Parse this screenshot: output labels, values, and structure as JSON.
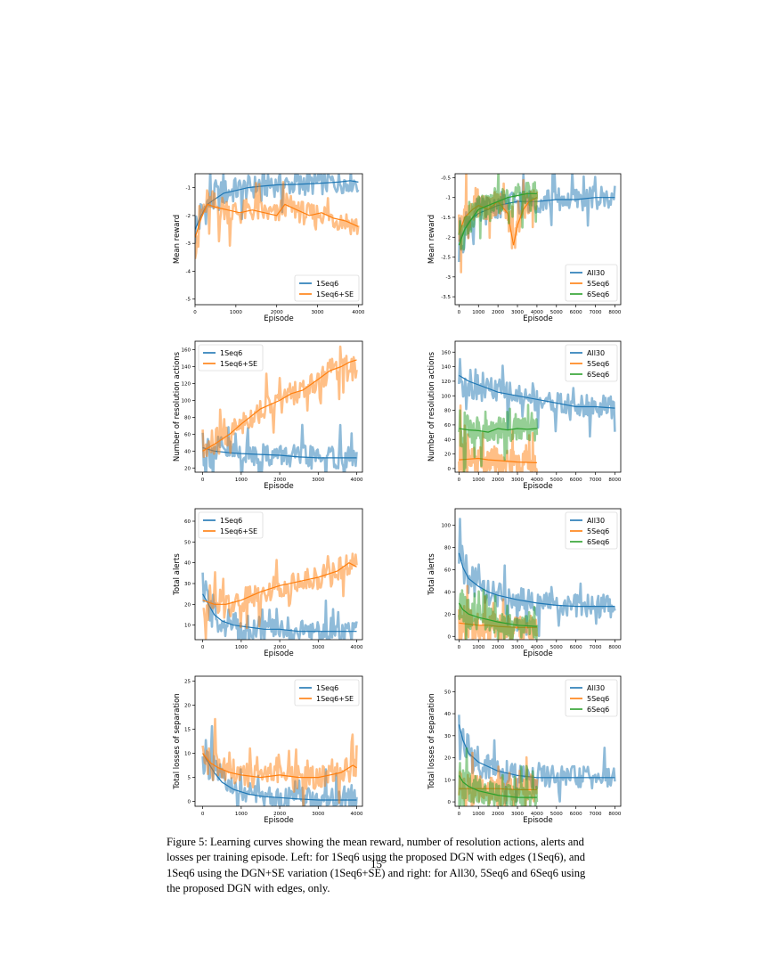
{
  "chart_data": [
    {
      "type": "line",
      "xlabel": "Episode",
      "ylabel": "Mean reward",
      "xlim": [
        0,
        4100
      ],
      "ylim": [
        -5.2,
        -0.5
      ],
      "xticks": [
        0,
        1000,
        2000,
        3000,
        4000
      ],
      "yticks": [
        -5,
        -4,
        -3,
        -2,
        -1
      ],
      "legend_position": "lower-right",
      "series": [
        {
          "name": "1Seq6",
          "color": "#1f77b4",
          "x": [
            0,
            150,
            300,
            500,
            700,
            1000,
            1300,
            1600,
            2000,
            2500,
            3000,
            3500,
            3800,
            4000
          ],
          "y": [
            -2.5,
            -2.0,
            -1.6,
            -1.4,
            -1.2,
            -1.1,
            -1.0,
            -0.95,
            -0.9,
            -0.88,
            -0.85,
            -0.8,
            -0.75,
            -0.8
          ]
        },
        {
          "name": "1Seq6+SE",
          "color": "#ff7f0e",
          "x": [
            0,
            150,
            300,
            500,
            800,
            1100,
            1400,
            1700,
            2000,
            2200,
            2500,
            2800,
            3100,
            3400,
            3700,
            4000
          ],
          "y": [
            -2.8,
            -2.1,
            -1.6,
            -1.7,
            -1.8,
            -1.9,
            -1.8,
            -1.9,
            -2.0,
            -1.6,
            -1.8,
            -2.0,
            -1.9,
            -2.1,
            -2.2,
            -2.4
          ]
        }
      ]
    },
    {
      "type": "line",
      "xlabel": "Episode",
      "ylabel": "Mean reward",
      "xlim": [
        -200,
        8300
      ],
      "ylim": [
        -3.7,
        -0.4
      ],
      "xticks": [
        0,
        1000,
        2000,
        3000,
        4000,
        5000,
        6000,
        7000,
        8000
      ],
      "yticks": [
        -3.5,
        -3.0,
        -2.5,
        -2.0,
        -1.5,
        -1.0,
        -0.5
      ],
      "legend_position": "lower-right",
      "series": [
        {
          "name": "All30",
          "color": "#1f77b4",
          "x": [
            0,
            500,
            1000,
            1500,
            2000,
            3000,
            4000,
            5000,
            6000,
            7000,
            8000
          ],
          "y": [
            -2.1,
            -1.6,
            -1.4,
            -1.3,
            -1.2,
            -1.1,
            -1.1,
            -1.05,
            -1.05,
            -1.0,
            -1.0
          ]
        },
        {
          "name": "5Seq6",
          "color": "#ff7f0e",
          "x": [
            0,
            300,
            700,
            1000,
            1500,
            2000,
            2500,
            2800,
            3000,
            3300,
            3600,
            4000
          ],
          "y": [
            -1.9,
            -1.5,
            -1.3,
            -1.2,
            -1.3,
            -1.1,
            -1.4,
            -2.2,
            -1.7,
            -1.3,
            -1.1,
            -1.0
          ]
        },
        {
          "name": "6Seq6",
          "color": "#2ca02c",
          "x": [
            0,
            300,
            700,
            1000,
            1500,
            2000,
            2500,
            3000,
            3500,
            4000
          ],
          "y": [
            -2.2,
            -1.8,
            -1.5,
            -1.3,
            -1.2,
            -1.1,
            -1.0,
            -0.95,
            -0.9,
            -0.9
          ]
        }
      ]
    },
    {
      "type": "line",
      "xlabel": "Episode",
      "ylabel": "Number of resolution actions",
      "xlim": [
        -200,
        4150
      ],
      "ylim": [
        15,
        170
      ],
      "xticks": [
        0,
        1000,
        2000,
        3000,
        4000
      ],
      "yticks": [
        20,
        40,
        60,
        80,
        100,
        120,
        140,
        160
      ],
      "legend_position": "upper-left",
      "series": [
        {
          "name": "1Seq6",
          "color": "#1f77b4",
          "x": [
            0,
            300,
            700,
            1000,
            1500,
            2000,
            2500,
            3000,
            3500,
            4000
          ],
          "y": [
            44,
            40,
            38,
            37,
            36,
            35,
            33,
            32,
            32,
            32
          ]
        },
        {
          "name": "1Seq6+SE",
          "color": "#ff7f0e",
          "x": [
            0,
            300,
            700,
            1000,
            1500,
            2000,
            2300,
            2600,
            3000,
            3300,
            3600,
            3800,
            4000
          ],
          "y": [
            40,
            48,
            60,
            72,
            90,
            100,
            108,
            112,
            125,
            135,
            140,
            145,
            148
          ]
        }
      ]
    },
    {
      "type": "line",
      "xlabel": "Episode",
      "ylabel": "Number of resolution actions",
      "xlim": [
        -200,
        8300
      ],
      "ylim": [
        -5,
        175
      ],
      "xticks": [
        0,
        1000,
        2000,
        3000,
        4000,
        5000,
        6000,
        7000,
        8000
      ],
      "yticks": [
        0,
        20,
        40,
        60,
        80,
        100,
        120,
        140,
        160
      ],
      "legend_position": "upper-right",
      "series": [
        {
          "name": "All30",
          "color": "#1f77b4",
          "x": [
            0,
            500,
            1000,
            1500,
            2000,
            3000,
            4000,
            5000,
            6000,
            7000,
            8000
          ],
          "y": [
            128,
            120,
            115,
            110,
            105,
            100,
            95,
            90,
            85,
            85,
            83
          ]
        },
        {
          "name": "5Seq6",
          "color": "#ff7f0e",
          "x": [
            0,
            500,
            1000,
            1500,
            2000,
            3000,
            4000
          ],
          "y": [
            12,
            13,
            14,
            12,
            11,
            9,
            8
          ]
        },
        {
          "name": "6Seq6",
          "color": "#2ca02c",
          "x": [
            0,
            500,
            1000,
            1500,
            2000,
            2500,
            3000,
            3500,
            4000
          ],
          "y": [
            55,
            53,
            52,
            50,
            55,
            53,
            55,
            54,
            55
          ]
        }
      ]
    },
    {
      "type": "line",
      "xlabel": "Episode",
      "ylabel": "Total alerts",
      "xlim": [
        -200,
        4150
      ],
      "ylim": [
        3,
        66
      ],
      "xticks": [
        0,
        1000,
        2000,
        3000,
        4000
      ],
      "yticks": [
        10,
        20,
        30,
        40,
        50,
        60
      ],
      "legend_position": "upper-left",
      "series": [
        {
          "name": "1Seq6",
          "color": "#1f77b4",
          "x": [
            0,
            150,
            300,
            500,
            800,
            1200,
            1600,
            2000,
            2500,
            3000,
            3500,
            4000
          ],
          "y": [
            25,
            20,
            15,
            12,
            10,
            9,
            8,
            8,
            7,
            7,
            7,
            7
          ]
        },
        {
          "name": "1Seq6+SE",
          "color": "#ff7f0e",
          "x": [
            0,
            300,
            600,
            1000,
            1500,
            2000,
            2500,
            3000,
            3500,
            3800,
            4000
          ],
          "y": [
            22,
            20,
            20,
            22,
            26,
            29,
            31,
            33,
            36,
            40,
            38
          ]
        }
      ]
    },
    {
      "type": "line",
      "xlabel": "Episode",
      "ylabel": "Total alerts",
      "xlim": [
        -200,
        8300
      ],
      "ylim": [
        -3,
        115
      ],
      "xticks": [
        0,
        1000,
        2000,
        3000,
        4000,
        5000,
        6000,
        7000,
        8000
      ],
      "yticks": [
        0,
        20,
        40,
        60,
        80,
        100
      ],
      "legend_position": "upper-right",
      "series": [
        {
          "name": "All30",
          "color": "#1f77b4",
          "x": [
            0,
            200,
            500,
            1000,
            1500,
            2000,
            3000,
            4000,
            5000,
            6000,
            7000,
            8000
          ],
          "y": [
            75,
            62,
            52,
            45,
            40,
            37,
            33,
            30,
            28,
            27,
            27,
            27
          ]
        },
        {
          "name": "5Seq6",
          "color": "#ff7f0e",
          "x": [
            0,
            500,
            1000,
            1500,
            2000,
            3000,
            4000
          ],
          "y": [
            12,
            11,
            10,
            10,
            9,
            8,
            8
          ]
        },
        {
          "name": "6Seq6",
          "color": "#2ca02c",
          "x": [
            0,
            200,
            500,
            1000,
            1500,
            2000,
            3000,
            4000
          ],
          "y": [
            30,
            24,
            20,
            17,
            15,
            13,
            10,
            9
          ]
        }
      ]
    },
    {
      "type": "line",
      "xlabel": "Episode",
      "ylabel": "Total losses of separation",
      "xlim": [
        -200,
        4150
      ],
      "ylim": [
        -1,
        26
      ],
      "xticks": [
        0,
        1000,
        2000,
        3000,
        4000
      ],
      "yticks": [
        0,
        5,
        10,
        15,
        20,
        25
      ],
      "legend_position": "upper-right",
      "series": [
        {
          "name": "1Seq6",
          "color": "#1f77b4",
          "x": [
            0,
            150,
            300,
            500,
            800,
            1200,
            1600,
            2000,
            2500,
            3000,
            3500,
            4000
          ],
          "y": [
            10,
            8,
            6,
            4,
            2.5,
            1.5,
            1,
            0.8,
            0.5,
            0.3,
            0.3,
            0.3
          ]
        },
        {
          "name": "1Seq6+SE",
          "color": "#ff7f0e",
          "x": [
            0,
            200,
            400,
            700,
            1000,
            1500,
            2000,
            2500,
            3000,
            3300,
            3600,
            3900,
            4000
          ],
          "y": [
            10,
            8,
            7,
            6,
            5.5,
            5,
            5.5,
            5,
            5,
            5.5,
            6,
            7.5,
            7
          ]
        }
      ]
    },
    {
      "type": "line",
      "xlabel": "Episode",
      "ylabel": "Total losses of separation",
      "xlim": [
        -200,
        8300
      ],
      "ylim": [
        -2,
        57
      ],
      "xticks": [
        0,
        1000,
        2000,
        3000,
        4000,
        5000,
        6000,
        7000,
        8000
      ],
      "yticks": [
        0,
        10,
        20,
        30,
        40,
        50
      ],
      "legend_position": "upper-right",
      "series": [
        {
          "name": "All30",
          "color": "#1f77b4",
          "x": [
            0,
            200,
            500,
            1000,
            1500,
            2000,
            3000,
            4000,
            5000,
            6000,
            7000,
            8000
          ],
          "y": [
            35,
            28,
            22,
            18,
            16,
            14,
            12,
            11,
            11,
            11,
            11,
            11
          ]
        },
        {
          "name": "5Seq6",
          "color": "#ff7f0e",
          "x": [
            0,
            500,
            1000,
            2000,
            3000,
            4000
          ],
          "y": [
            6,
            6,
            6,
            6,
            5.5,
            5.5
          ]
        },
        {
          "name": "6Seq6",
          "color": "#2ca02c",
          "x": [
            0,
            200,
            500,
            1000,
            1500,
            2000,
            3000,
            4000
          ],
          "y": [
            12,
            9,
            7,
            5,
            4,
            3,
            2,
            2
          ]
        }
      ]
    }
  ],
  "caption": "Figure 5: Learning curves showing the mean reward, number of resolution actions, alerts and losses per training episode. Left: for 1Seq6 using the proposed DGN with edges (1Seq6), and 1Seq6 using the DGN+SE variation (1Seq6+SE) and right: for All30, 5Seq6 and 6Seq6 using the proposed DGN with edges, only.",
  "page_number": "15"
}
